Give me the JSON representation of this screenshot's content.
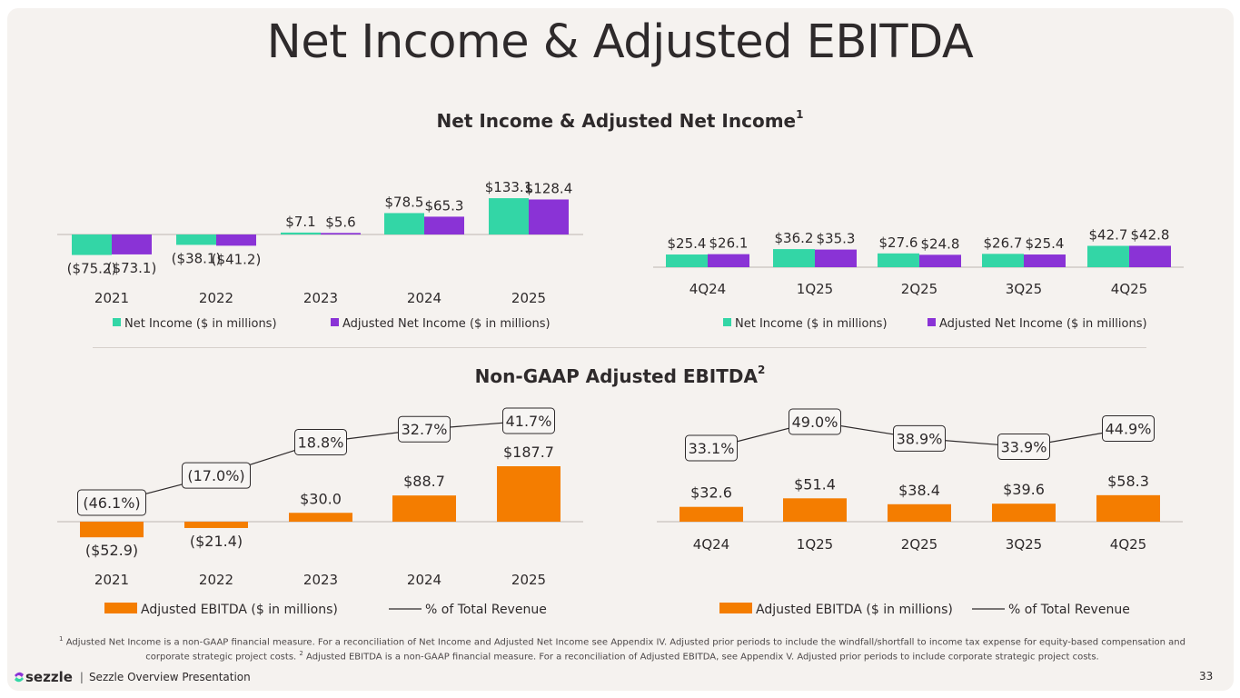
{
  "title": "Net Income & Adjusted EBITDA",
  "section1_title": "Net Income & Adjusted Net Income",
  "section1_sup": "1",
  "section2_title": "Non-GAAP Adjusted EBITDA",
  "section2_sup": "2",
  "colors": {
    "net_income": "#33d6a6",
    "adj_net_income": "#8a33d6",
    "ebitda": "#f47d00",
    "line": "#2e2a2b"
  },
  "chart_data": [
    {
      "type": "bar",
      "categories": [
        "2021",
        "2022",
        "2023",
        "2024",
        "2025"
      ],
      "series": [
        {
          "name": "Net Income ($ in millions)",
          "values": [
            -75.2,
            -38.1,
            7.1,
            78.5,
            133.1
          ],
          "labels": [
            "($75.2)",
            "($38.1)",
            "$7.1",
            "$78.5",
            "$133.1"
          ]
        },
        {
          "name": "Adjusted Net Income ($ in millions)",
          "values": [
            -73.1,
            -41.2,
            5.6,
            65.3,
            128.4
          ],
          "labels": [
            "($73.1)",
            "($41.2)",
            "$5.6",
            "$65.3",
            "$128.4"
          ]
        }
      ],
      "legend": "bottom"
    },
    {
      "type": "bar",
      "categories": [
        "4Q24",
        "1Q25",
        "2Q25",
        "3Q25",
        "4Q25"
      ],
      "series": [
        {
          "name": "Net Income ($ in millions)",
          "values": [
            25.4,
            36.2,
            27.6,
            26.7,
            42.7
          ],
          "labels": [
            "$25.4",
            "$36.2",
            "$27.6",
            "$26.7",
            "$42.7"
          ]
        },
        {
          "name": "Adjusted Net Income ($ in millions)",
          "values": [
            26.1,
            35.3,
            24.8,
            25.4,
            42.8
          ],
          "labels": [
            "$26.1",
            "$35.3",
            "$24.8",
            "$25.4",
            "$42.8"
          ]
        }
      ],
      "legend": "bottom"
    },
    {
      "type": "bar",
      "categories": [
        "2021",
        "2022",
        "2023",
        "2024",
        "2025"
      ],
      "bar_series": {
        "name": "Adjusted EBITDA ($ in millions)",
        "values": [
          -52.9,
          -21.4,
          30.0,
          88.7,
          187.7
        ],
        "labels": [
          "($52.9)",
          "($21.4)",
          "$30.0",
          "$88.7",
          "$187.7"
        ]
      },
      "line_series": {
        "name": "% of Total Revenue",
        "values": [
          -46.1,
          -17.0,
          18.8,
          32.7,
          41.7
        ],
        "labels": [
          "(46.1%)",
          "(17.0%)",
          "18.8%",
          "32.7%",
          "41.7%"
        ]
      },
      "legend": "bottom"
    },
    {
      "type": "bar",
      "categories": [
        "4Q24",
        "1Q25",
        "2Q25",
        "3Q25",
        "4Q25"
      ],
      "bar_series": {
        "name": "Adjusted EBITDA ($ in millions)",
        "values": [
          32.6,
          51.4,
          38.4,
          39.6,
          58.3
        ],
        "labels": [
          "$32.6",
          "$51.4",
          "$38.4",
          "$39.6",
          "$58.3"
        ]
      },
      "line_series": {
        "name": "% of Total Revenue",
        "values": [
          33.1,
          49.0,
          38.9,
          33.9,
          44.9
        ],
        "labels": [
          "33.1%",
          "49.0%",
          "38.9%",
          "33.9%",
          "44.9%"
        ]
      },
      "legend": "bottom"
    }
  ],
  "footnote": {
    "sup1": "1",
    "text1": "Adjusted Net Income is a non-GAAP financial measure. For a reconciliation of Net Income and Adjusted Net Income see Appendix IV. Adjusted prior periods to include the windfall/shortfall to income tax expense for equity-based compensation and corporate strategic project costs.",
    "sup2": "2",
    "text2": "Adjusted EBITDA is a non-GAAP financial measure. For a reconciliation of Adjusted EBITDA, see Appendix V. Adjusted prior periods to include corporate strategic project costs."
  },
  "brand": {
    "logo_text": "sezzle",
    "separator": "|",
    "presentation": "Sezzle Overview Presentation"
  },
  "page_number": "33"
}
